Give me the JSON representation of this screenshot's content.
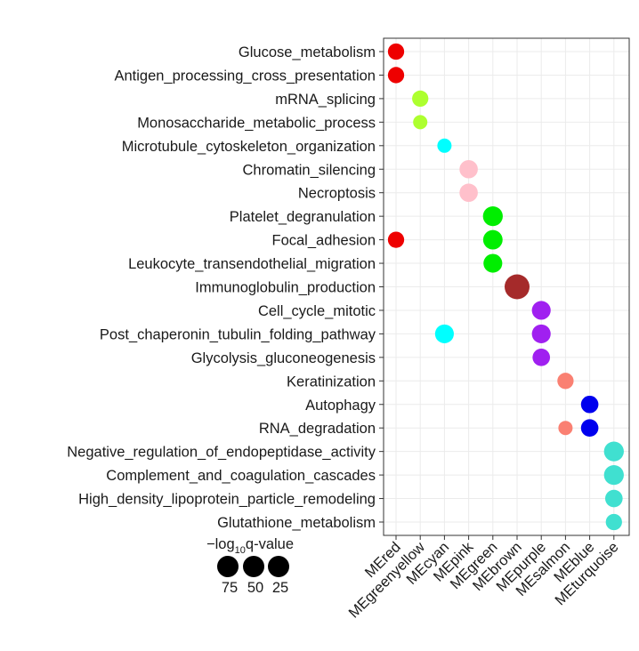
{
  "chart_data": {
    "type": "scatter",
    "x_categories": [
      "MEred",
      "MEgreenyellow",
      "MEcyan",
      "MEpink",
      "MEgreen",
      "MEbrown",
      "MEpurple",
      "MEsalmon",
      "MEblue",
      "MEturquoise"
    ],
    "y_categories": [
      "Glucose_metabolism",
      "Antigen_processing_cross_presentation",
      "mRNA_splicing",
      "Monosaccharide_metabolic_process",
      "Microtubule_cytoskeleton_organization",
      "Chromatin_silencing",
      "Necroptosis",
      "Platelet_degranulation",
      "Focal_adhesion",
      "Leukocyte_transendothelial_migration",
      "Immunoglobulin_production",
      "Cell_cycle_mitotic",
      "Post_chaperonin_tubulin_folding_pathway",
      "Glycolysis_gluconeogenesis",
      "Keratinization",
      "Autophagy",
      "RNA_degradation",
      "Negative_regulation_of_endopeptidase_activity",
      "Complement_and_coagulation_cascades",
      "High_density_lipoprotein_particle_remodeling",
      "Glutathione_metabolism"
    ],
    "module_colors": {
      "MEred": "#ee0000",
      "MEgreenyellow": "#adff2f",
      "MEcyan": "#00ffff",
      "MEpink": "#ffc0cb",
      "MEgreen": "#00ee00",
      "MEbrown": "#a52a2a",
      "MEpurple": "#a020f0",
      "MEsalmon": "#fa8072",
      "MEblue": "#0000ee",
      "MEturquoise": "#40e0d0"
    },
    "points": [
      {
        "x": "MEred",
        "y": "Glucose_metabolism",
        "value": 22
      },
      {
        "x": "MEred",
        "y": "Antigen_processing_cross_presentation",
        "value": 22
      },
      {
        "x": "MEgreenyellow",
        "y": "mRNA_splicing",
        "value": 22
      },
      {
        "x": "MEgreenyellow",
        "y": "Monosaccharide_metabolic_process",
        "value": 20
      },
      {
        "x": "MEcyan",
        "y": "Microtubule_cytoskeleton_organization",
        "value": 20
      },
      {
        "x": "MEpink",
        "y": "Chromatin_silencing",
        "value": 28
      },
      {
        "x": "MEpink",
        "y": "Necroptosis",
        "value": 28
      },
      {
        "x": "MEgreen",
        "y": "Platelet_degranulation",
        "value": 35
      },
      {
        "x": "MEred",
        "y": "Focal_adhesion",
        "value": 22
      },
      {
        "x": "MEgreen",
        "y": "Focal_adhesion",
        "value": 33
      },
      {
        "x": "MEgreen",
        "y": "Leukocyte_transendothelial_migration",
        "value": 30
      },
      {
        "x": "MEbrown",
        "y": "Immunoglobulin_production",
        "value": 75
      },
      {
        "x": "MEpurple",
        "y": "Cell_cycle_mitotic",
        "value": 30
      },
      {
        "x": "MEcyan",
        "y": "Post_chaperonin_tubulin_folding_pathway",
        "value": 30
      },
      {
        "x": "MEpurple",
        "y": "Post_chaperonin_tubulin_folding_pathway",
        "value": 30
      },
      {
        "x": "MEpurple",
        "y": "Glycolysis_gluconeogenesis",
        "value": 25
      },
      {
        "x": "MEsalmon",
        "y": "Keratinization",
        "value": 22
      },
      {
        "x": "MEblue",
        "y": "Autophagy",
        "value": 25
      },
      {
        "x": "MEsalmon",
        "y": "RNA_degradation",
        "value": 20
      },
      {
        "x": "MEblue",
        "y": "RNA_degradation",
        "value": 25
      },
      {
        "x": "MEturquoise",
        "y": "Negative_regulation_of_endopeptidase_activity",
        "value": 35
      },
      {
        "x": "MEturquoise",
        "y": "Complement_and_coagulation_cascades",
        "value": 35
      },
      {
        "x": "MEturquoise",
        "y": "High_density_lipoprotein_particle_remodeling",
        "value": 25
      },
      {
        "x": "MEturquoise",
        "y": "Glutathione_metabolism",
        "value": 22
      }
    ],
    "legend": {
      "title_prefix": "−log",
      "title_subscript": "10",
      "title_suffix": "q-value",
      "placement": "bottom-left",
      "entries": [
        {
          "label": "75",
          "value": 75
        },
        {
          "label": "50",
          "value": 50
        },
        {
          "label": "25",
          "value": 25
        }
      ]
    },
    "grid": true,
    "xlabel": "",
    "ylabel": ""
  }
}
